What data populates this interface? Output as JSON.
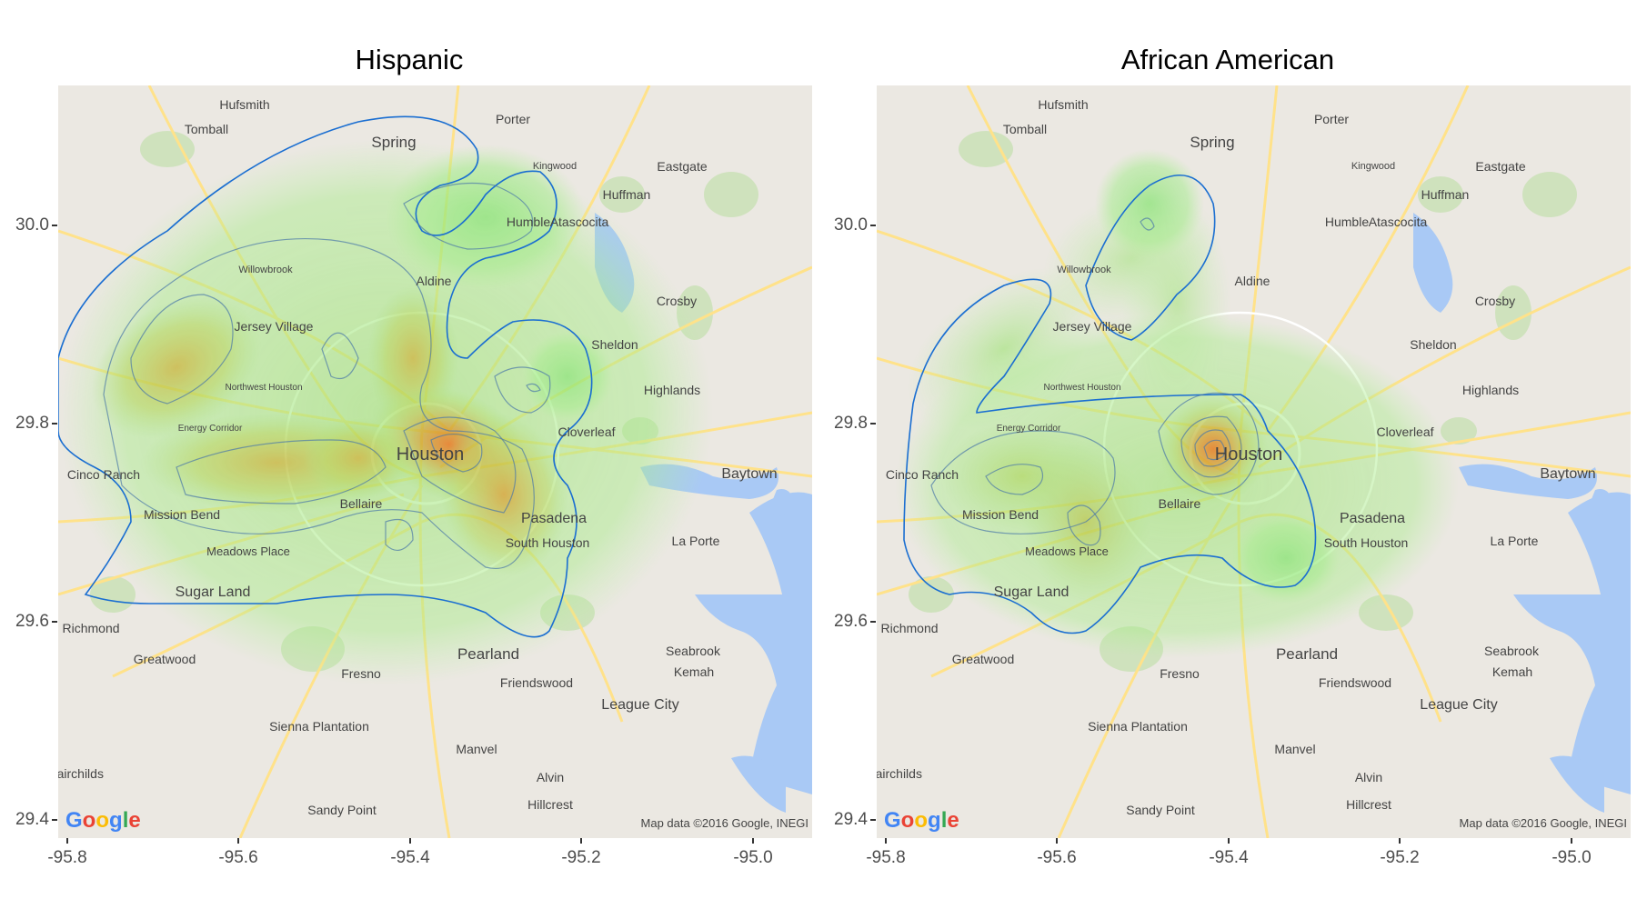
{
  "panels": [
    {
      "title": "Hispanic",
      "density_color": "#e07b10",
      "contour_color": "#1a6ed1"
    },
    {
      "title": "African American",
      "density_color": "#e07b10",
      "contour_color": "#1a6ed1"
    }
  ],
  "axes": {
    "x_ticks": [
      "-95.8",
      "-95.6",
      "-95.4",
      "-95.2",
      "-95.0"
    ],
    "y_ticks": [
      "30.0",
      "29.8",
      "29.6",
      "29.4"
    ]
  },
  "map": {
    "place_labels": [
      "Hufsmith",
      "Tomball",
      "Porter",
      "Spring",
      "Kingwood",
      "Eastgate",
      "Huffman",
      "Humble",
      "Atascocita",
      "Willowbrook",
      "Aldine",
      "Crosby",
      "Jersey Village",
      "Sheldon",
      "Northwest Houston",
      "Highlands",
      "Energy Corridor",
      "Cloverleaf",
      "Houston",
      "Baytown",
      "Cinco Ranch",
      "Pasadena",
      "Mission Bend",
      "Bellaire",
      "La Porte",
      "South Houston",
      "Meadows Place",
      "Sugar Land",
      "Richmond",
      "Seabrook",
      "Kemah",
      "Pearland",
      "Greatwood",
      "Fresno",
      "Friendswood",
      "League City",
      "Sienna Plantation",
      "Manvel",
      "Alvin",
      "Fairchilds",
      "Sandy Point",
      "Hillcrest"
    ],
    "google_logo": "Google",
    "attribution": "Map data ©2016 Google, INEGI"
  },
  "colors": {
    "map_bg": "#ebe8e2",
    "water": "#a9c9f5",
    "park": "#c8e0b4",
    "road": "#ffffff",
    "highway": "#ffe28a",
    "density_low": "#8ee86a",
    "density_high": "#e0761a"
  }
}
